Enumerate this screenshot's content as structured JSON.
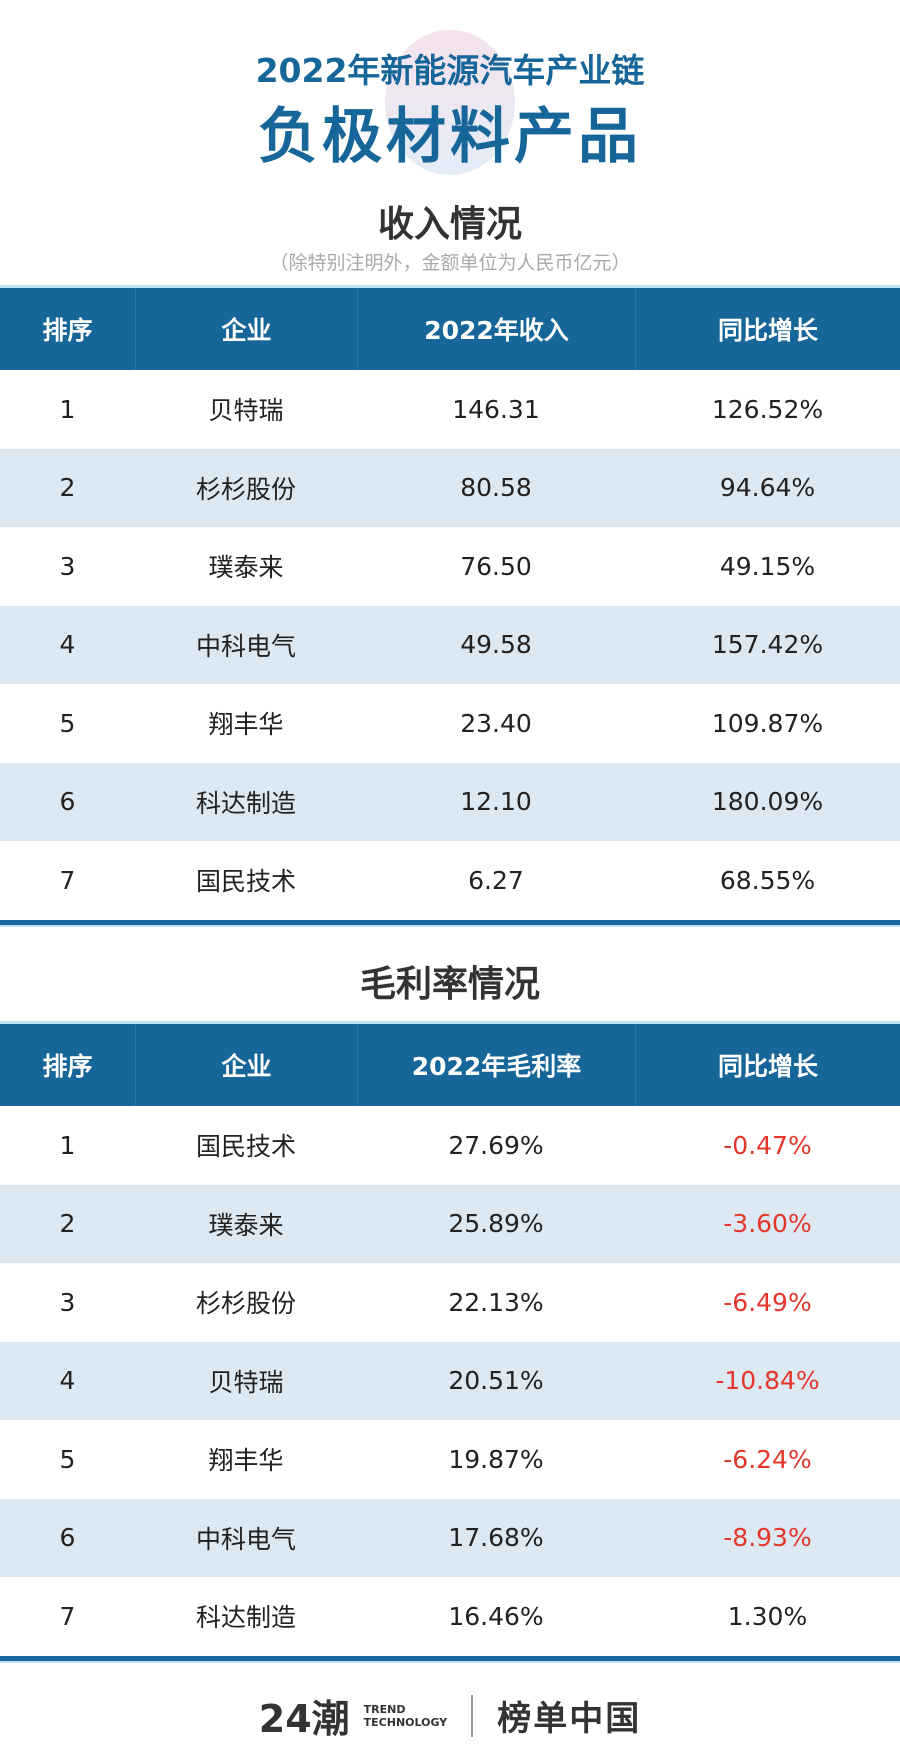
{
  "header": {
    "subtitle": "2022年新能源汽车产业链",
    "title": "负极材料产品"
  },
  "revenue": {
    "title": "收入情况",
    "note": "（除特别注明外，金额单位为人民币亿元）",
    "columns": [
      "排序",
      "企业",
      "2022年收入",
      "同比增长"
    ],
    "rows": [
      [
        "1",
        "贝特瑞",
        "146.31",
        "126.52%"
      ],
      [
        "2",
        "杉杉股份",
        "80.58",
        "94.64%"
      ],
      [
        "3",
        "璞泰来",
        "76.50",
        "49.15%"
      ],
      [
        "4",
        "中科电气",
        "49.58",
        "157.42%"
      ],
      [
        "5",
        "翔丰华",
        "23.40",
        "109.87%"
      ],
      [
        "6",
        "科达制造",
        "12.10",
        "180.09%"
      ],
      [
        "7",
        "国民技术",
        "6.27",
        "68.55%"
      ]
    ]
  },
  "margin": {
    "title": "毛利率情况",
    "columns": [
      "排序",
      "企业",
      "2022年毛利率",
      "同比增长"
    ],
    "rows": [
      [
        "1",
        "国民技术",
        "27.69%",
        "-0.47%"
      ],
      [
        "2",
        "璞泰来",
        "25.89%",
        "-3.60%"
      ],
      [
        "3",
        "杉杉股份",
        "22.13%",
        "-6.49%"
      ],
      [
        "4",
        "贝特瑞",
        "20.51%",
        "-10.84%"
      ],
      [
        "5",
        "翔丰华",
        "19.87%",
        "-6.24%"
      ],
      [
        "6",
        "中科电气",
        "17.68%",
        "-8.93%"
      ],
      [
        "7",
        "科达制造",
        "16.46%",
        "1.30%"
      ]
    ]
  },
  "footer": {
    "logo_mark": "24潮",
    "logo_text1": "TREND",
    "logo_text2": "TECHNOLOGY",
    "brand": "榜单中国"
  },
  "colors": {
    "primary": "#16669a",
    "row_alt": "#dce8f2",
    "negative": "#e5362b"
  }
}
